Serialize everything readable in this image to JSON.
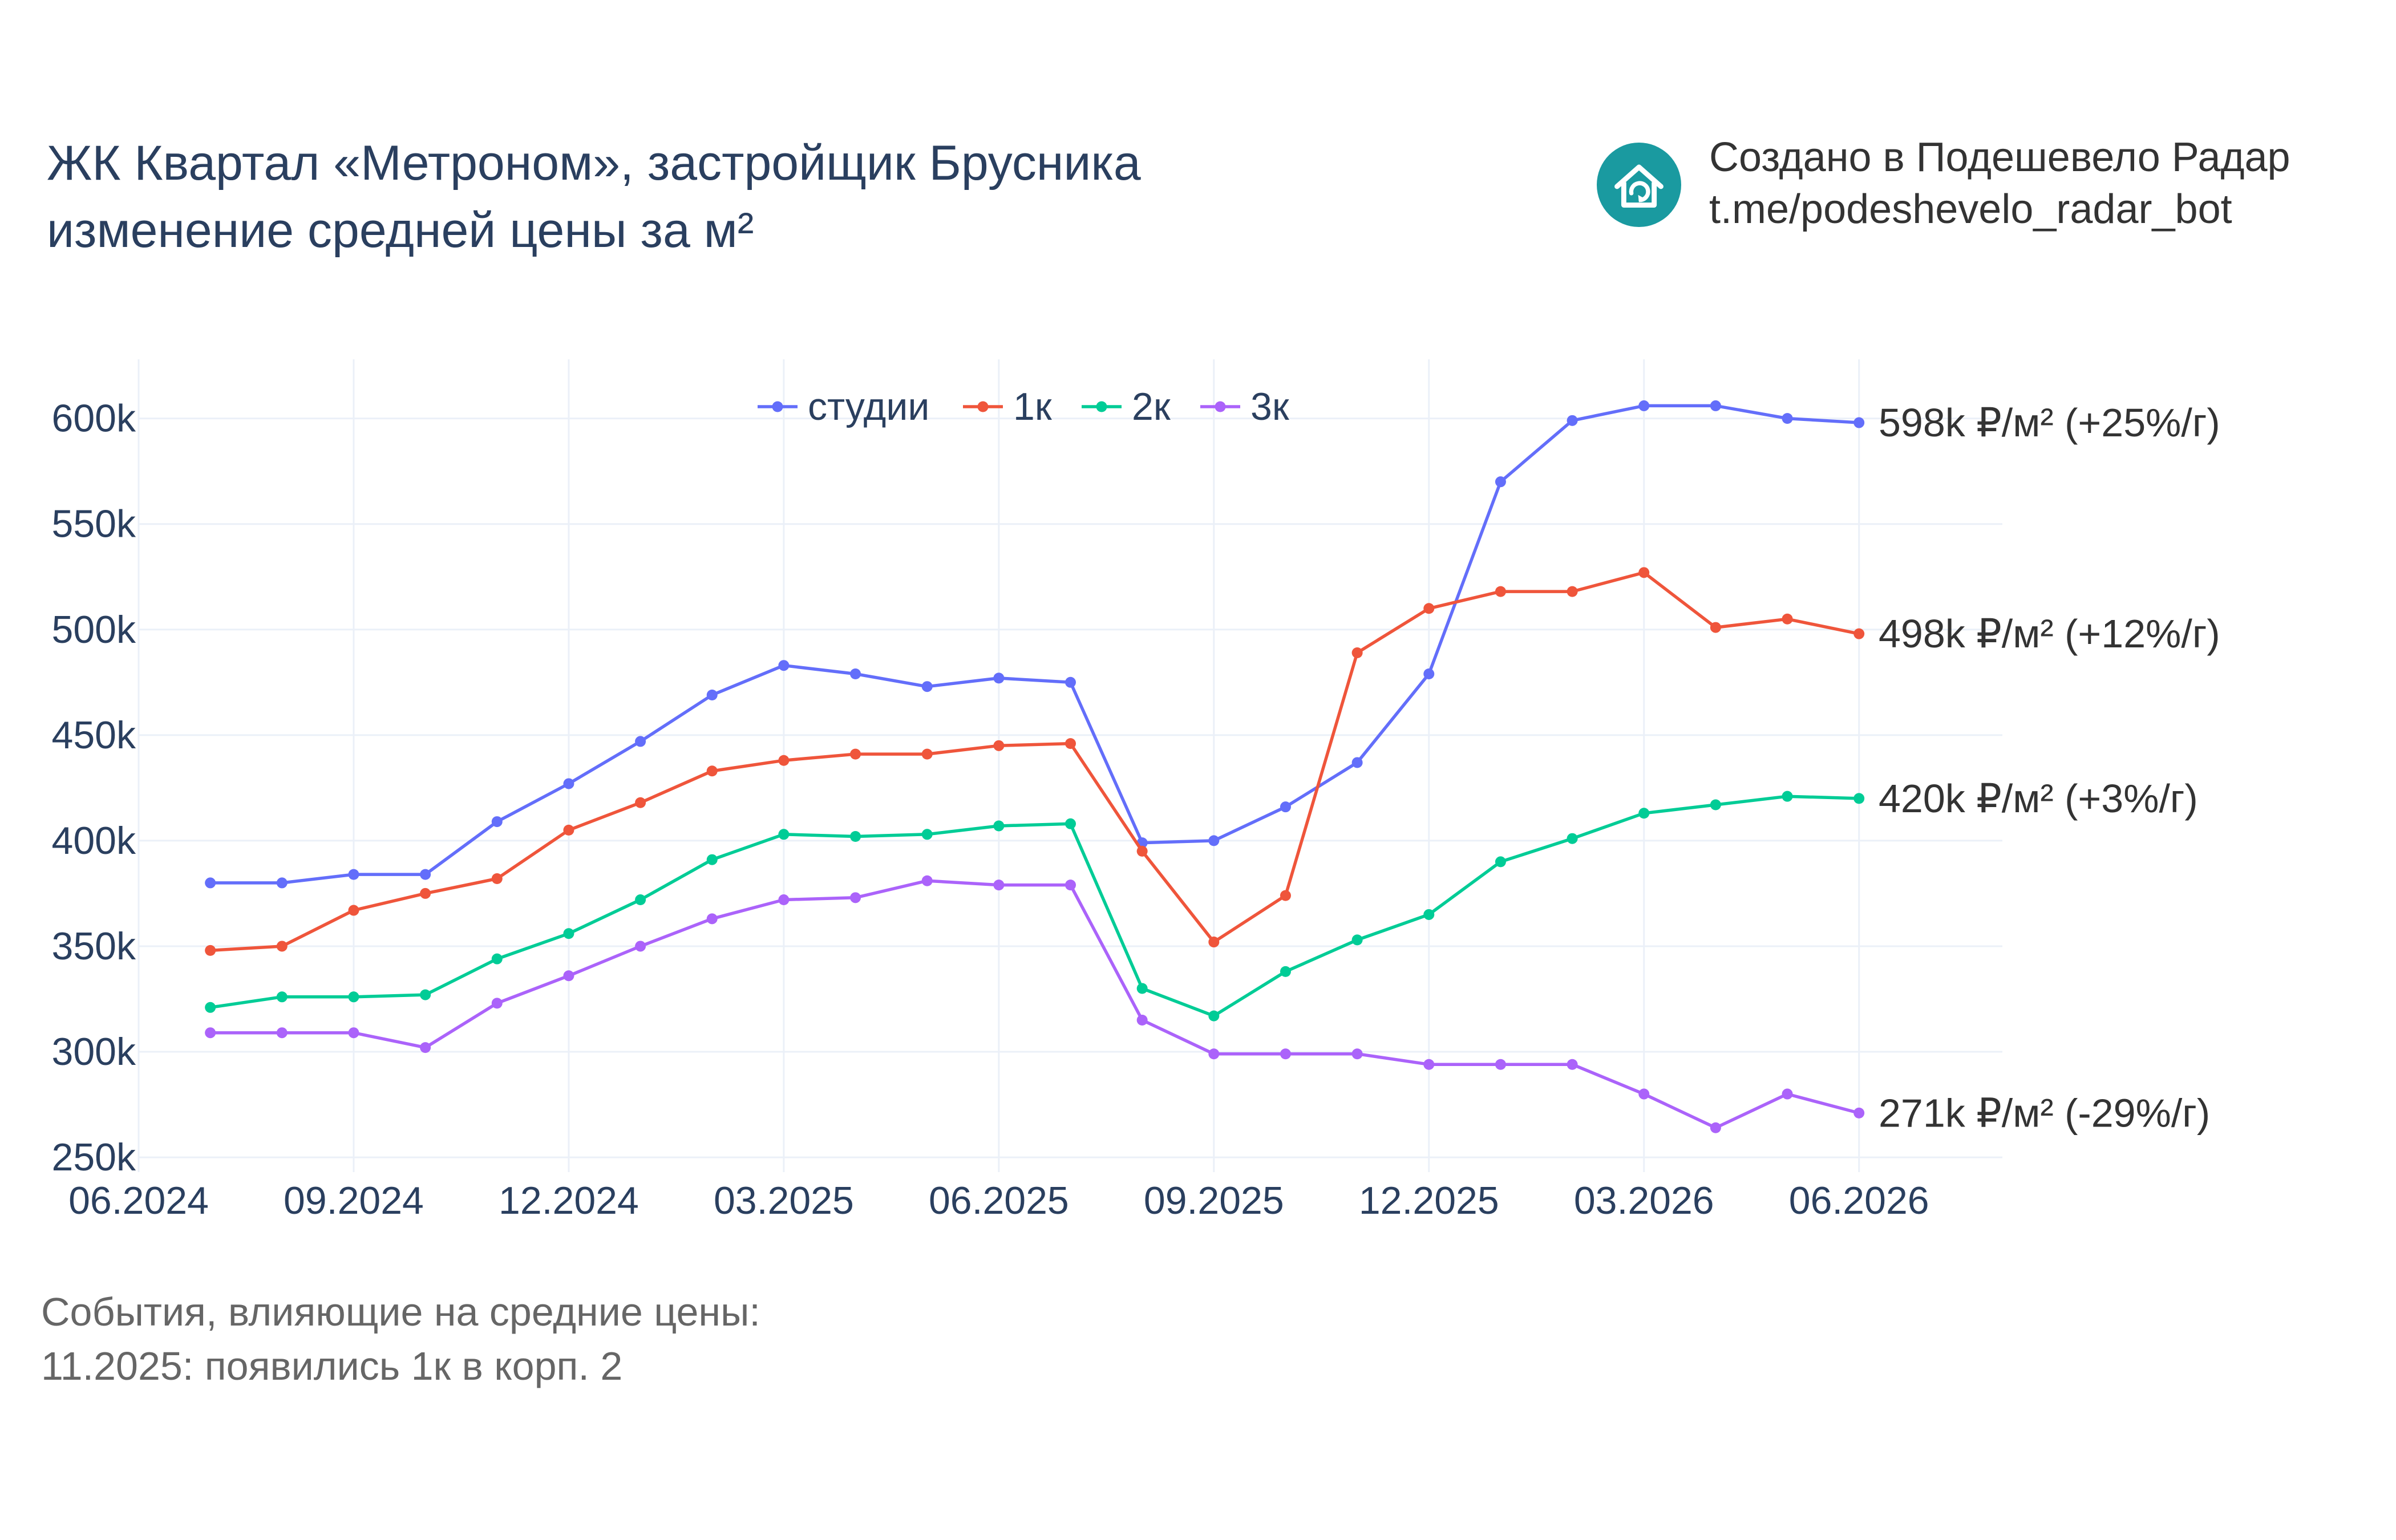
{
  "header": {
    "title_line1": "ЖК Квартал «Метроном», застройщик Брусника",
    "title_line2": "изменение средней цены за м²"
  },
  "branding": {
    "line1": "Создано в Подешевело Радар",
    "line2": "t.me/podeshevelo_radar_bot",
    "icon": "house-refresh-icon",
    "icon_color": "#1a9aa0"
  },
  "notes": {
    "heading": "События, влияющие на средние цены:",
    "event": "11.2025: появились 1к в корп. 2"
  },
  "chart_data": {
    "type": "line",
    "x": [
      "2024-07",
      "2024-08",
      "2024-09",
      "2024-10",
      "2024-11",
      "2024-12",
      "2025-01",
      "2025-02",
      "2025-03",
      "2025-04",
      "2025-05",
      "2025-06",
      "2025-07",
      "2025-08",
      "2025-09",
      "2025-10",
      "2025-11",
      "2025-12",
      "2026-01",
      "2026-02",
      "2026-03",
      "2026-04",
      "2026-05",
      "2026-06"
    ],
    "xlim": [
      "2024-06",
      "2026-08"
    ],
    "x_ticks": [
      "2024-06",
      "2024-09",
      "2024-12",
      "2025-03",
      "2025-06",
      "2025-09",
      "2025-12",
      "2026-03",
      "2026-06"
    ],
    "x_tick_labels": [
      "06.2024",
      "09.2024",
      "12.2024",
      "03.2025",
      "06.2025",
      "09.2025",
      "12.2025",
      "03.2026",
      "06.2026"
    ],
    "ylim": [
      243000,
      628000
    ],
    "y_ticks": [
      250000,
      300000,
      350000,
      400000,
      450000,
      500000,
      550000,
      600000
    ],
    "y_tick_labels": [
      "250k",
      "300k",
      "350k",
      "400k",
      "450k",
      "500k",
      "550k",
      "600k"
    ],
    "grid": true,
    "legend_position": "top-center",
    "series": [
      {
        "name": "студии",
        "color": "#636efa",
        "end_label": "598k ₽/м² (+25%/г)",
        "values": [
          380000,
          380000,
          384000,
          384000,
          409000,
          427000,
          447000,
          469000,
          483000,
          479000,
          473000,
          477000,
          475000,
          399000,
          400000,
          416000,
          437000,
          479000,
          570000,
          599000,
          606000,
          606000,
          600000,
          598000
        ]
      },
      {
        "name": "1к",
        "color": "#ef553b",
        "end_label": "498k ₽/м² (+12%/г)",
        "values": [
          348000,
          350000,
          367000,
          375000,
          382000,
          405000,
          418000,
          433000,
          438000,
          441000,
          441000,
          445000,
          446000,
          395000,
          352000,
          374000,
          489000,
          510000,
          518000,
          518000,
          527000,
          501000,
          505000,
          498000
        ]
      },
      {
        "name": "2к",
        "color": "#00cc96",
        "end_label": "420k ₽/м² (+3%/г)",
        "values": [
          321000,
          326000,
          326000,
          327000,
          344000,
          356000,
          372000,
          391000,
          403000,
          402000,
          403000,
          407000,
          408000,
          330000,
          317000,
          338000,
          353000,
          365000,
          390000,
          401000,
          413000,
          417000,
          421000,
          420000
        ]
      },
      {
        "name": "3к",
        "color": "#ab63fa",
        "end_label": "271k ₽/м² (-29%/г)",
        "values": [
          309000,
          309000,
          309000,
          302000,
          323000,
          336000,
          350000,
          363000,
          372000,
          373000,
          381000,
          379000,
          379000,
          315000,
          299000,
          299000,
          299000,
          294000,
          294000,
          294000,
          280000,
          264000,
          280000,
          271000
        ]
      }
    ]
  }
}
